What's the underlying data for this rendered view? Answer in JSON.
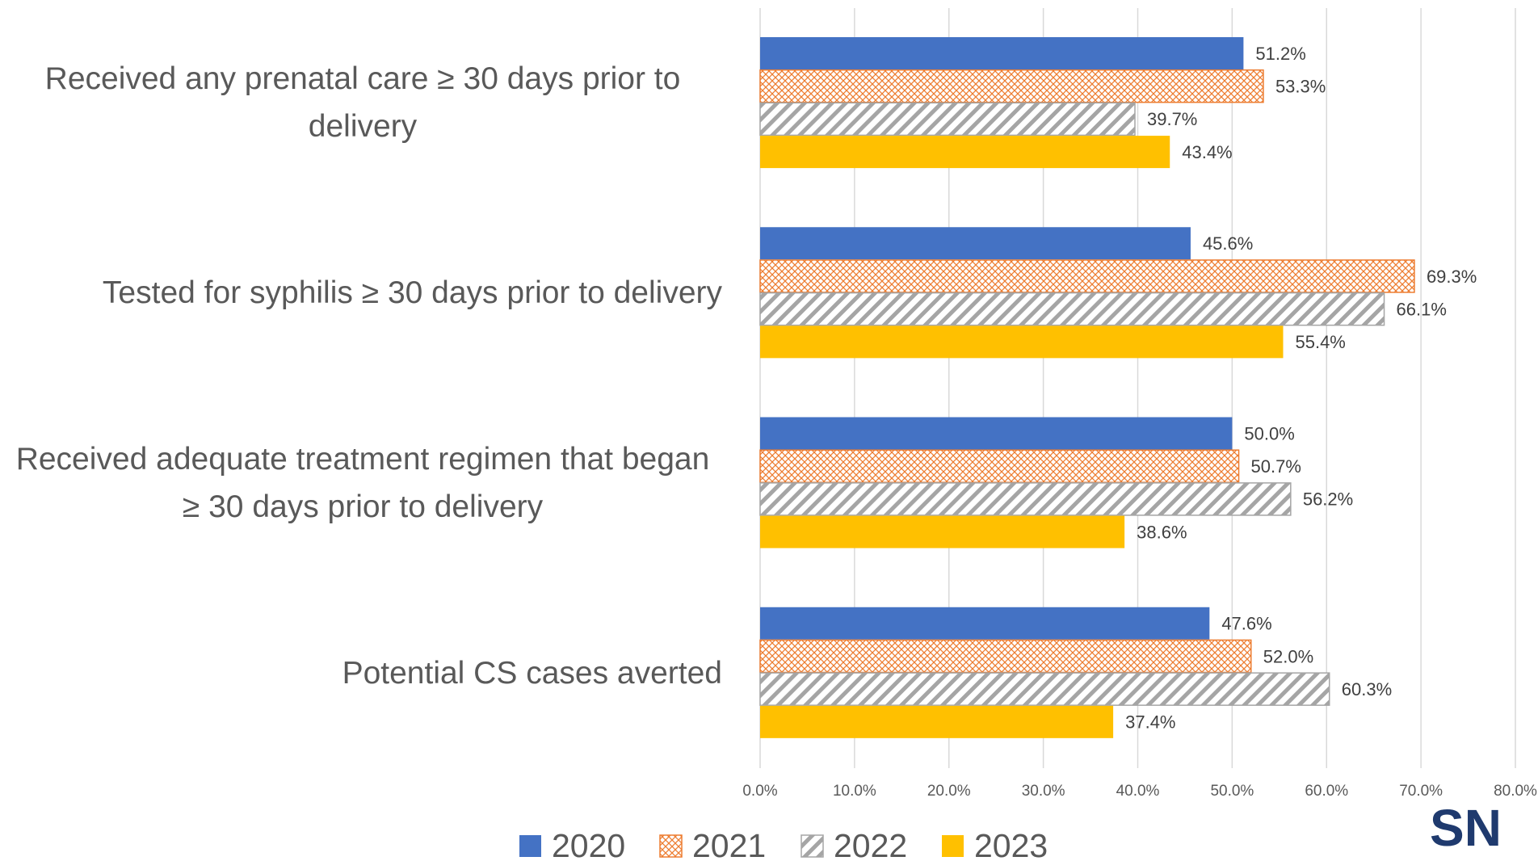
{
  "chart_data": {
    "type": "barh",
    "categories": [
      "Received any prenatal care  ≥ 30 days prior to delivery",
      "Tested for syphilis  ≥ 30 days prior to delivery",
      "Received adequate treatment regimen that began ≥ 30 days prior to delivery",
      "Potential CS cases averted"
    ],
    "series": [
      {
        "name": "2020",
        "color": "#4472c4",
        "pattern": "solid",
        "values": [
          51.2,
          45.6,
          50.0,
          47.6
        ],
        "value_labels": [
          "51.2%",
          "45.6%",
          "50.0%",
          "47.6%"
        ]
      },
      {
        "name": "2021",
        "color": "#ed7d31",
        "pattern": "crosshatch",
        "values": [
          53.3,
          69.3,
          50.7,
          52.0
        ],
        "value_labels": [
          "53.3%",
          "69.3%",
          "50.7%",
          "52.0%"
        ]
      },
      {
        "name": "2022",
        "color": "#a5a5a5",
        "pattern": "diagonal",
        "values": [
          39.7,
          66.1,
          56.2,
          60.3
        ],
        "value_labels": [
          "39.7%",
          "66.1%",
          "56.2%",
          "60.3%"
        ]
      },
      {
        "name": "2023",
        "color": "#ffc000",
        "pattern": "solid",
        "values": [
          43.4,
          55.4,
          38.6,
          37.4
        ],
        "value_labels": [
          "43.4%",
          "55.4%",
          "38.6%",
          "37.4%"
        ]
      }
    ],
    "xlim": [
      0,
      80
    ],
    "xticks": [
      {
        "value": 0,
        "label": "0.0%"
      },
      {
        "value": 10,
        "label": "10.0%"
      },
      {
        "value": 20,
        "label": "20.0%"
      },
      {
        "value": 30,
        "label": "30.0%"
      },
      {
        "value": 40,
        "label": "40.0%"
      },
      {
        "value": 50,
        "label": "50.0%"
      },
      {
        "value": 60,
        "label": "60.0%"
      },
      {
        "value": 70,
        "label": "70.0%"
      },
      {
        "value": 80,
        "label": "80.0%"
      }
    ],
    "grid": true,
    "legend": "bottom"
  },
  "logo": "SN"
}
